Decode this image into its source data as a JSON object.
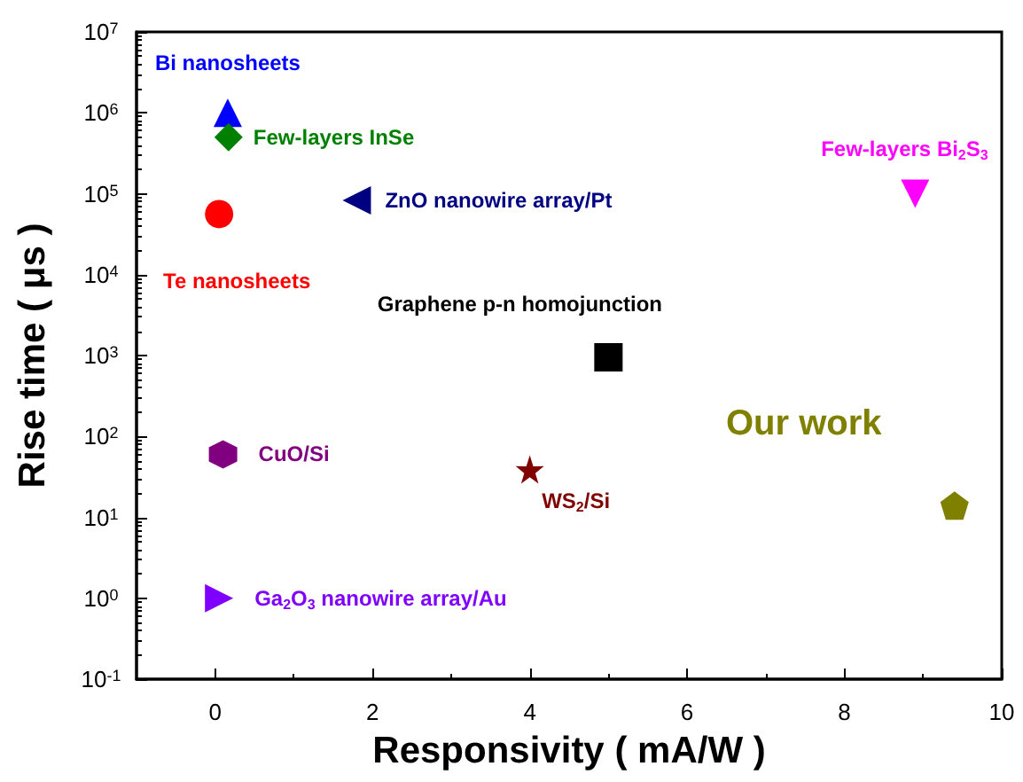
{
  "chart_data": {
    "type": "scatter",
    "xlabel": "Responsivity ( mA/W )",
    "ylabel": "Rise time ( μs )",
    "log": "y",
    "xlim": [
      -1,
      10
    ],
    "xticks": [
      0,
      2,
      4,
      6,
      8,
      10
    ],
    "ylim": [
      0.1,
      10000000
    ],
    "yticks": [
      {
        "value": 0.1,
        "label": "10$^{-1}$"
      },
      {
        "value": 1,
        "label": "10$^{0}$"
      },
      {
        "value": 10,
        "label": "10$^{1}$"
      },
      {
        "value": 100,
        "label": "10$^{2}$"
      },
      {
        "value": 1000,
        "label": "10$^{3}$"
      },
      {
        "value": 10000,
        "label": "10$^{4}$"
      },
      {
        "value": 100000,
        "label": "10$^{5}$"
      },
      {
        "value": 1000000,
        "label": "10$^{6}$"
      },
      {
        "value": 10000000,
        "label": "10$^{7}$"
      }
    ],
    "grid": false,
    "legend": false,
    "series": [
      {
        "name": "Bi nanosheets",
        "color": "#0000ff",
        "marker": "triangle",
        "x": [
          0.16
        ],
        "values": [
          1000000
        ]
      },
      {
        "name": "Few-layers InSe",
        "color": "#008000",
        "marker": "diamond",
        "x": [
          0.17
        ],
        "values": [
          500000
        ]
      },
      {
        "name": "Te nanosheets",
        "color": "#ff0000",
        "marker": "circle",
        "x": [
          0.05
        ],
        "values": [
          56000
        ]
      },
      {
        "name": "ZnO nanowire array/Pt",
        "color": "#000080",
        "marker": "triangle-left",
        "x": [
          1.8
        ],
        "values": [
          83000
        ]
      },
      {
        "name": "Few-layers Bi$_{2}$S$_{3}$",
        "color": "#ff00ff",
        "marker": "triangle-down",
        "x": [
          8.9
        ],
        "values": [
          100000
        ]
      },
      {
        "name": "Graphene p-n homojunction",
        "color": "#000000",
        "marker": "square",
        "x": [
          5.0
        ],
        "values": [
          950
        ]
      },
      {
        "name": "CuO/Si",
        "color": "#800080",
        "x": [
          0.1
        ],
        "values": [
          60
        ]
      },
      {
        "name": "WS$_{2}$/Si",
        "color": "#800000",
        "marker": "star",
        "x": [
          4.0
        ],
        "values": [
          39
        ]
      },
      {
        "name": "Our work",
        "color": "#808000",
        "x": [
          9.4
        ],
        "values": [
          14
        ]
      },
      {
        "name": "Ga$_{2}$O$_{3}$ nanowire array/Au",
        "color": "#8000ff",
        "marker": "triangle-right",
        "x": [
          0.05
        ],
        "values": [
          1
        ]
      }
    ]
  }
}
